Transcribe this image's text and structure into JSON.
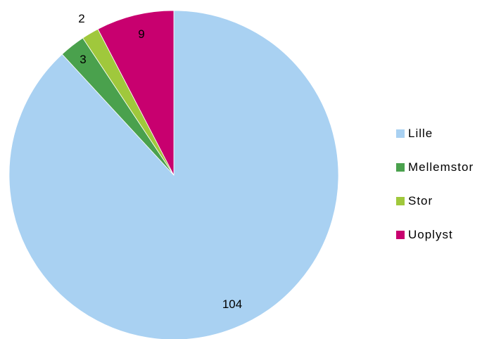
{
  "chart_data": {
    "type": "pie",
    "categories": [
      "Lille",
      "Mellemstor",
      "Stor",
      "Uoplyst"
    ],
    "values": [
      104,
      3,
      2,
      9
    ],
    "colors": [
      "#a9d1f2",
      "#4aa14d",
      "#a0c83c",
      "#c8006f"
    ],
    "data_labels": [
      "104",
      "3",
      "2",
      "9"
    ],
    "legend_position": "right",
    "start_angle": "12 o'clock",
    "direction": "clockwise"
  }
}
